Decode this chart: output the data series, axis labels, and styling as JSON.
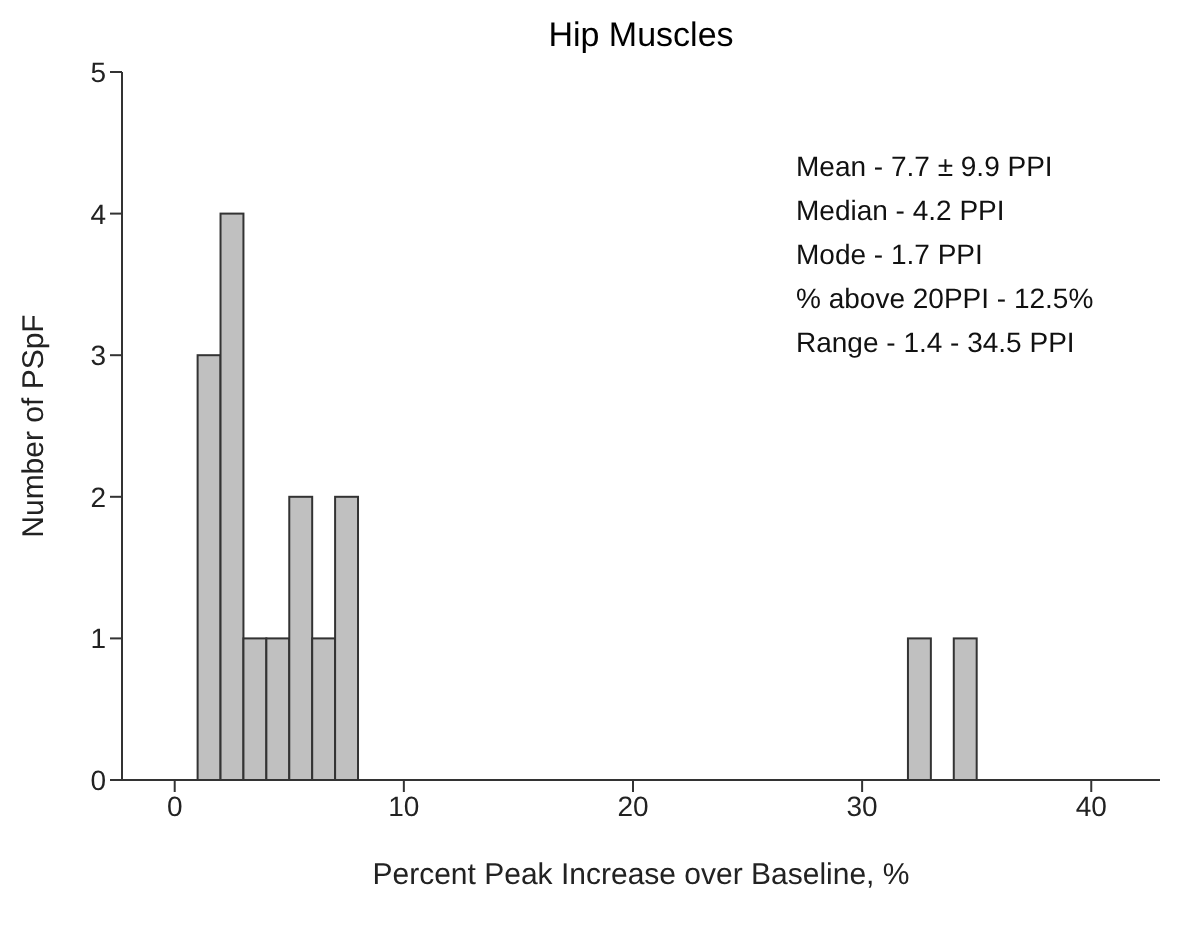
{
  "chart_data": {
    "type": "histogram",
    "title": "Hip Muscles",
    "xlabel": "Percent Peak Increase over Baseline, %",
    "ylabel": "Number of PSpF",
    "bins": [
      1,
      2,
      3,
      4,
      5,
      6,
      7,
      8,
      9,
      10,
      11,
      12,
      13,
      14,
      15,
      16,
      17,
      18,
      19,
      20,
      21,
      22,
      23,
      24,
      25,
      26,
      27,
      28,
      29,
      30,
      31,
      32,
      33,
      34,
      35
    ],
    "values": [
      3,
      4,
      1,
      1,
      2,
      1,
      2,
      0,
      0,
      0,
      0,
      0,
      0,
      0,
      0,
      0,
      0,
      0,
      0,
      0,
      0,
      0,
      0,
      0,
      0,
      0,
      0,
      0,
      0,
      0,
      0,
      1,
      0,
      1
    ],
    "color": "#c0c0c0",
    "xlim": [
      -2.3,
      43
    ],
    "xticks": [
      0,
      10,
      20,
      30,
      40
    ],
    "ylim": [
      0,
      5
    ],
    "yticks": [
      0,
      1,
      2,
      3,
      4,
      5
    ],
    "grid": false,
    "annotations": [
      "Mean - 7.7 ± 9.9 PPI",
      "Median - 4.2 PPI",
      "Mode - 1.7 PPI",
      "% above 20PPI - 12.5%",
      "Range - 1.4 - 34.5 PPI"
    ]
  }
}
